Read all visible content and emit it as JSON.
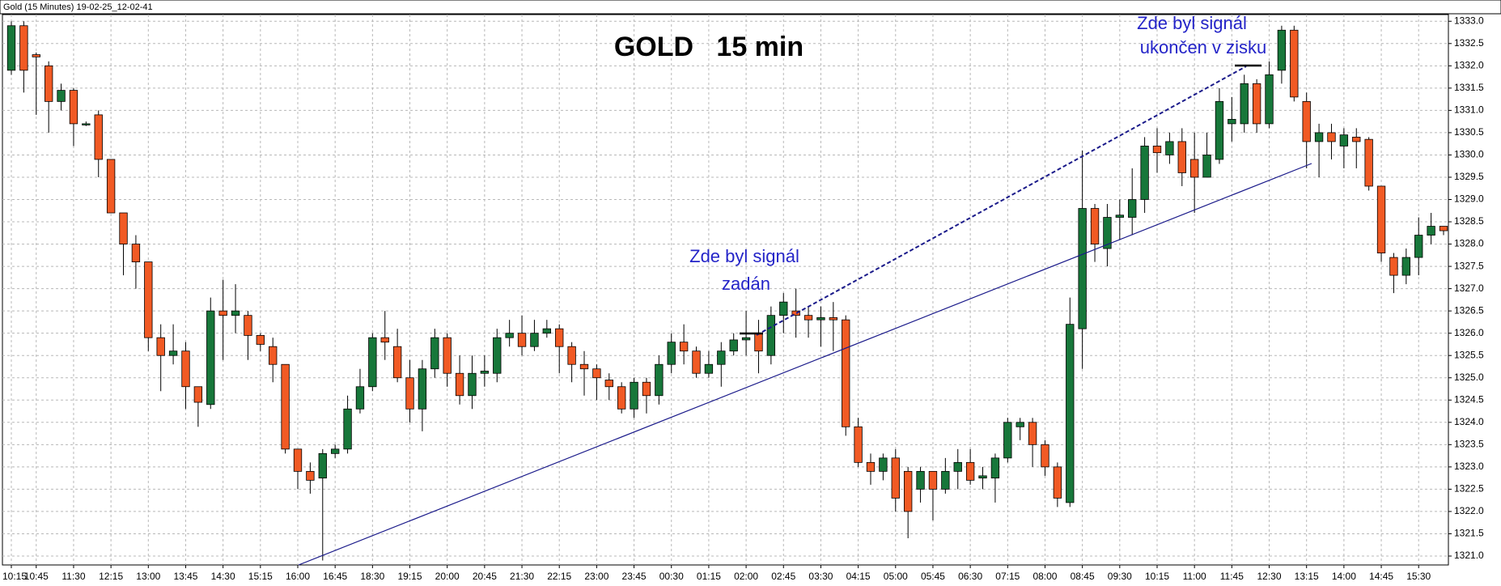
{
  "window_title": "Gold (15 Minutes) 19-02-25_12-02-41",
  "chart_data": {
    "type": "candlestick",
    "title": "GOLD   15 min",
    "annotations": [
      "Zde byl signál",
      "zadán",
      "Zde byl signál",
      "ukončen v zisku"
    ],
    "up_color": "#17773a",
    "down_color": "#f15a24",
    "grid": true,
    "categories": [
      "10:15",
      null,
      "10:45",
      null,
      null,
      "11:30",
      null,
      null,
      "12:15",
      null,
      null,
      "13:00",
      null,
      null,
      "13:45",
      null,
      null,
      "14:30",
      null,
      null,
      "15:15",
      null,
      null,
      "16:00",
      null,
      null,
      "16:45",
      null,
      null,
      "18:30",
      null,
      null,
      "19:15",
      null,
      null,
      "20:00",
      null,
      null,
      "20:45",
      null,
      null,
      "21:30",
      null,
      null,
      "22:15",
      null,
      null,
      "23:00",
      null,
      null,
      "23:45",
      null,
      null,
      "00:30",
      null,
      null,
      "01:15",
      null,
      null,
      "02:00",
      null,
      null,
      "02:45",
      null,
      null,
      "03:30",
      null,
      null,
      "04:15",
      null,
      null,
      "05:00",
      null,
      null,
      "05:45",
      null,
      null,
      "06:30",
      null,
      null,
      "07:15",
      null,
      null,
      "08:00",
      null,
      null,
      "08:45",
      null,
      null,
      "09:30",
      null,
      null,
      "10:15",
      null,
      null,
      "11:00",
      null,
      null,
      "11:45",
      null,
      null,
      "12:30",
      null,
      null,
      "13:15",
      null,
      null,
      "14:00",
      null,
      null,
      "14:45",
      null,
      null,
      "15:30",
      null,
      null
    ],
    "open": [
      1331.9,
      1332.9,
      1332.25,
      1332.0,
      1331.2,
      1331.45,
      1330.7,
      1330.9,
      1329.9,
      1328.7,
      1328.0,
      1327.6,
      1325.9,
      1325.5,
      1325.6,
      1324.8,
      1324.4,
      1326.5,
      1326.4,
      1326.4,
      1325.95,
      1325.7,
      1325.3,
      1323.4,
      1322.9,
      1322.75,
      1323.3,
      1323.4,
      1324.3,
      1324.8,
      1325.9,
      1325.7,
      1325.0,
      1324.3,
      1325.2,
      1325.9,
      1325.1,
      1324.6,
      1325.1,
      1325.1,
      1325.9,
      1326.0,
      1325.7,
      1326.0,
      1326.1,
      1325.7,
      1325.3,
      1325.2,
      1324.95,
      1324.8,
      1324.3,
      1324.9,
      1324.6,
      1325.3,
      1325.8,
      1325.6,
      1325.1,
      1325.3,
      1325.6,
      1325.85,
      1326.0,
      1325.5,
      1326.4,
      1326.5,
      1326.4,
      1326.3,
      1326.35,
      1326.3,
      1323.9,
      1323.1,
      1322.9,
      1323.2,
      1322.9,
      1322.5,
      1322.9,
      1322.5,
      1322.9,
      1323.1,
      1322.75,
      1322.75,
      1323.2,
      1323.9,
      1324.0,
      1323.5,
      1323.0,
      1322.2,
      1326.1,
      1328.8,
      1327.9,
      1328.6,
      1328.6,
      1329.0,
      1330.2,
      1330.0,
      1330.3,
      1329.9,
      1329.5,
      1329.9,
      1330.7,
      1330.7,
      1331.6,
      1330.7,
      1331.9,
      1332.8,
      1331.2,
      1330.3,
      1330.5,
      1330.2,
      1330.4,
      1330.35,
      1329.3,
      1327.7,
      1327.3,
      1327.7,
      1328.2,
      1328.4
    ],
    "high": [
      1333.0,
      1333.0,
      1332.3,
      1332.1,
      1331.6,
      1331.5,
      1330.75,
      1331.0,
      1329.9,
      1328.7,
      1328.2,
      1327.6,
      1326.2,
      1326.2,
      1325.8,
      1324.8,
      1326.8,
      1327.2,
      1327.1,
      1326.5,
      1326.0,
      1325.9,
      1325.3,
      1323.4,
      1323.1,
      1323.4,
      1323.5,
      1324.6,
      1325.2,
      1326.0,
      1326.5,
      1326.1,
      1325.4,
      1325.4,
      1326.1,
      1326.0,
      1325.5,
      1325.5,
      1325.5,
      1326.1,
      1326.3,
      1326.4,
      1326.3,
      1326.3,
      1326.2,
      1325.8,
      1325.6,
      1325.3,
      1325.1,
      1324.9,
      1325.0,
      1325.0,
      1325.5,
      1326.0,
      1326.2,
      1325.7,
      1325.6,
      1325.8,
      1326.0,
      1326.5,
      1326.3,
      1326.6,
      1326.9,
      1327.0,
      1326.6,
      1326.6,
      1326.7,
      1326.4,
      1324.1,
      1323.3,
      1323.3,
      1323.4,
      1323.0,
      1323.0,
      1322.9,
      1323.2,
      1323.4,
      1323.4,
      1323.0,
      1323.3,
      1324.1,
      1324.1,
      1324.1,
      1323.6,
      1323.1,
      1326.8,
      1330.1,
      1328.9,
      1328.9,
      1329.0,
      1329.7,
      1330.4,
      1330.6,
      1330.5,
      1330.6,
      1330.5,
      1330.5,
      1331.5,
      1331.3,
      1331.8,
      1331.7,
      1332.1,
      1332.9,
      1332.9,
      1331.4,
      1330.7,
      1330.7,
      1330.6,
      1330.6,
      1330.4,
      1329.3,
      1327.8,
      1327.9,
      1328.6,
      1328.7,
      1328.4
    ],
    "low": [
      1331.8,
      1331.4,
      1330.9,
      1330.5,
      1331.0,
      1330.2,
      1330.65,
      1329.5,
      1328.7,
      1327.3,
      1327.0,
      1325.6,
      1324.7,
      1325.3,
      1324.3,
      1323.9,
      1324.3,
      1325.4,
      1326.0,
      1325.4,
      1325.6,
      1324.9,
      1323.3,
      1322.5,
      1322.4,
      1320.9,
      1323.2,
      1323.3,
      1324.2,
      1324.7,
      1325.4,
      1324.9,
      1324.0,
      1323.8,
      1325.0,
      1324.8,
      1324.4,
      1324.3,
      1324.8,
      1324.9,
      1325.7,
      1325.5,
      1325.6,
      1325.9,
      1325.1,
      1324.9,
      1324.6,
      1324.5,
      1324.5,
      1324.2,
      1324.1,
      1324.2,
      1324.4,
      1325.1,
      1325.3,
      1325.0,
      1325.0,
      1324.8,
      1325.5,
      1325.5,
      1325.1,
      1325.3,
      1326.0,
      1325.9,
      1325.9,
      1325.7,
      1325.6,
      1323.7,
      1323.0,
      1322.6,
      1322.7,
      1322.0,
      1321.4,
      1322.2,
      1321.8,
      1322.4,
      1322.5,
      1322.6,
      1322.5,
      1322.2,
      1323.1,
      1323.6,
      1323.0,
      1322.8,
      1322.1,
      1322.1,
      1325.2,
      1327.6,
      1327.5,
      1328.1,
      1328.2,
      1328.7,
      1329.6,
      1329.8,
      1329.3,
      1328.7,
      1329.5,
      1329.8,
      1330.3,
      1330.5,
      1330.5,
      1330.6,
      1331.6,
      1331.2,
      1329.7,
      1329.5,
      1329.9,
      1329.7,
      1329.7,
      1329.2,
      1327.6,
      1326.9,
      1327.1,
      1327.3,
      1328.0,
      1328.2
    ],
    "close": [
      1332.9,
      1331.9,
      1332.2,
      1331.2,
      1331.45,
      1330.7,
      1330.7,
      1329.9,
      1328.7,
      1328.0,
      1327.6,
      1325.9,
      1325.5,
      1325.6,
      1324.8,
      1324.45,
      1326.5,
      1326.4,
      1326.5,
      1325.95,
      1325.75,
      1325.3,
      1323.4,
      1322.9,
      1322.7,
      1323.3,
      1323.4,
      1324.3,
      1324.8,
      1325.9,
      1325.8,
      1325.0,
      1324.3,
      1325.2,
      1325.9,
      1325.1,
      1324.6,
      1325.1,
      1325.15,
      1325.9,
      1326.0,
      1325.7,
      1326.0,
      1326.1,
      1325.7,
      1325.3,
      1325.2,
      1325.0,
      1324.8,
      1324.3,
      1324.9,
      1324.6,
      1325.3,
      1325.8,
      1325.6,
      1325.1,
      1325.3,
      1325.6,
      1325.85,
      1325.9,
      1325.6,
      1326.4,
      1326.7,
      1326.4,
      1326.3,
      1326.35,
      1326.3,
      1323.9,
      1323.1,
      1322.9,
      1323.2,
      1322.3,
      1322.0,
      1322.9,
      1322.5,
      1322.9,
      1323.1,
      1322.7,
      1322.8,
      1323.2,
      1324.0,
      1324.0,
      1323.5,
      1323.0,
      1322.3,
      1326.2,
      1328.8,
      1328.0,
      1328.6,
      1328.65,
      1329.0,
      1330.2,
      1330.05,
      1330.3,
      1329.6,
      1329.5,
      1330.0,
      1331.2,
      1330.8,
      1331.6,
      1330.7,
      1331.8,
      1332.8,
      1331.3,
      1330.3,
      1330.5,
      1330.3,
      1330.45,
      1330.3,
      1329.3,
      1327.8,
      1327.3,
      1327.7,
      1328.2,
      1328.4,
      1328.3
    ],
    "ylim": [
      1320.8,
      1333.15
    ],
    "yticks": [
      {
        "value": 1321,
        "label": "1321.0"
      },
      1321.5,
      {
        "value": 1322,
        "label": "1322.0"
      },
      1322.5,
      {
        "value": 1323,
        "label": "1323.0"
      },
      1323.5,
      {
        "value": 1324,
        "label": "1324.0"
      },
      1324.5,
      {
        "value": 1325,
        "label": "1325.0"
      },
      1325.5,
      {
        "value": 1326,
        "label": "1326.0"
      },
      1326.5,
      {
        "value": 1327,
        "label": "1327.0"
      },
      1327.5,
      {
        "value": 1328,
        "label": "1328.0"
      },
      1328.5,
      {
        "value": 1329,
        "label": "1329.0"
      },
      1329.5,
      {
        "value": 1330,
        "label": "1330.0"
      },
      1330.5,
      {
        "value": 1331,
        "label": "1331.0"
      },
      1331.5,
      {
        "value": 1332,
        "label": "1332.0"
      },
      1332.5,
      {
        "value": 1333,
        "label": "1333.0"
      }
    ]
  }
}
